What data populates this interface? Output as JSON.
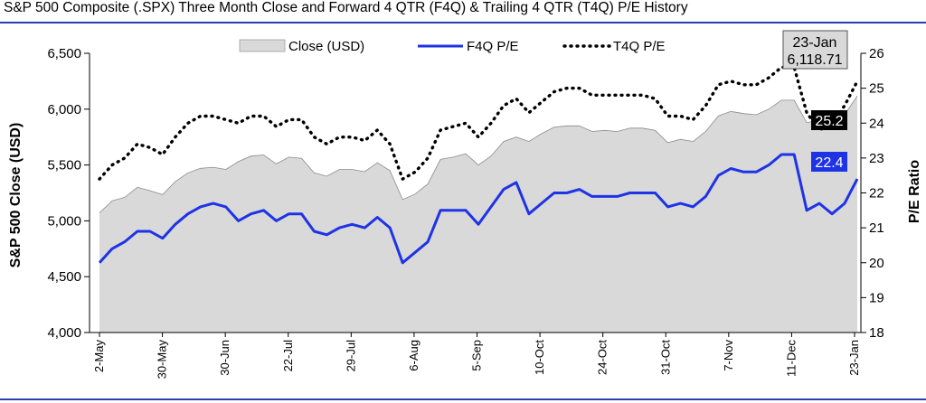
{
  "chart_data": {
    "type": "area+line",
    "title": "S&P 500 Composite (.SPX) Three Month Close and Forward 4 QTR (F4Q) & Trailing 4 QTR (T4Q) P/E History",
    "ylabel_left": "S&P 500 Close (USD)",
    "ylabel_right": "P/E Ratio",
    "ylim_left": [
      4000,
      6500
    ],
    "ylim_right": [
      18,
      26
    ],
    "yticks_left": [
      "4,000",
      "4,500",
      "5,000",
      "5,500",
      "6,000",
      "6,500"
    ],
    "yticks_right": [
      "18",
      "19",
      "20",
      "21",
      "22",
      "23",
      "24",
      "25",
      "26"
    ],
    "xtick_labels": [
      "2-May",
      "30-May",
      "30-Jun",
      "22-Jul",
      "29-Jul",
      "6-Aug",
      "5-Sep",
      "10-Oct",
      "24-Oct",
      "31-Oct",
      "7-Nov",
      "11-Dec",
      "23-Jan"
    ],
    "legend": {
      "placement": "top-center",
      "entries": [
        "Close (USD)",
        "F4Q P/E",
        "T4Q P/E"
      ]
    },
    "series": [
      {
        "name": "Close (USD)",
        "axis": "left",
        "style": "area",
        "color": "#d9d9d9",
        "values": [
          5070,
          5180,
          5210,
          5300,
          5270,
          5235,
          5350,
          5430,
          5470,
          5480,
          5460,
          5530,
          5580,
          5590,
          5510,
          5570,
          5560,
          5430,
          5400,
          5460,
          5460,
          5440,
          5520,
          5450,
          5190,
          5240,
          5330,
          5550,
          5570,
          5600,
          5500,
          5580,
          5710,
          5750,
          5710,
          5780,
          5840,
          5850,
          5850,
          5800,
          5810,
          5800,
          5830,
          5830,
          5810,
          5700,
          5730,
          5710,
          5800,
          5940,
          5980,
          5960,
          5950,
          6000,
          6080,
          6080,
          5880,
          5900,
          5950,
          5950,
          6118.71
        ]
      },
      {
        "name": "F4Q P/E",
        "axis": "right",
        "style": "line",
        "color": "#1e33e6",
        "values": [
          20.0,
          20.4,
          20.6,
          20.9,
          20.9,
          20.7,
          21.1,
          21.4,
          21.6,
          21.7,
          21.6,
          21.2,
          21.4,
          21.5,
          21.2,
          21.4,
          21.4,
          20.9,
          20.8,
          21.0,
          21.1,
          21.0,
          21.3,
          21.0,
          20.0,
          20.3,
          20.6,
          21.5,
          21.5,
          21.5,
          21.1,
          21.6,
          22.1,
          22.3,
          21.4,
          21.7,
          22.0,
          22.0,
          22.1,
          21.9,
          21.9,
          21.9,
          22.0,
          22.0,
          22.0,
          21.6,
          21.7,
          21.6,
          21.9,
          22.5,
          22.7,
          22.6,
          22.6,
          22.8,
          23.1,
          23.1,
          21.5,
          21.7,
          21.4,
          21.7,
          22.4
        ]
      },
      {
        "name": "T4Q P/E",
        "axis": "right",
        "style": "dotted-line",
        "color": "#000000",
        "values": [
          22.4,
          22.8,
          23.0,
          23.4,
          23.3,
          23.1,
          23.6,
          24.0,
          24.2,
          24.2,
          24.1,
          24.0,
          24.2,
          24.2,
          23.9,
          24.1,
          24.1,
          23.6,
          23.4,
          23.6,
          23.6,
          23.5,
          23.8,
          23.4,
          22.4,
          22.6,
          23.0,
          23.8,
          23.9,
          24.0,
          23.6,
          24.0,
          24.5,
          24.7,
          24.3,
          24.6,
          24.9,
          25.0,
          25.0,
          24.8,
          24.8,
          24.8,
          24.8,
          24.8,
          24.7,
          24.2,
          24.2,
          24.1,
          24.5,
          25.1,
          25.2,
          25.1,
          25.1,
          25.3,
          25.6,
          25.6,
          24.3,
          23.8,
          24.0,
          24.5,
          25.2
        ]
      }
    ],
    "annotations": {
      "last_date": "23-Jan",
      "last_close": "6,118.71",
      "last_t4q": "25.2",
      "last_f4q": "22.4"
    }
  }
}
